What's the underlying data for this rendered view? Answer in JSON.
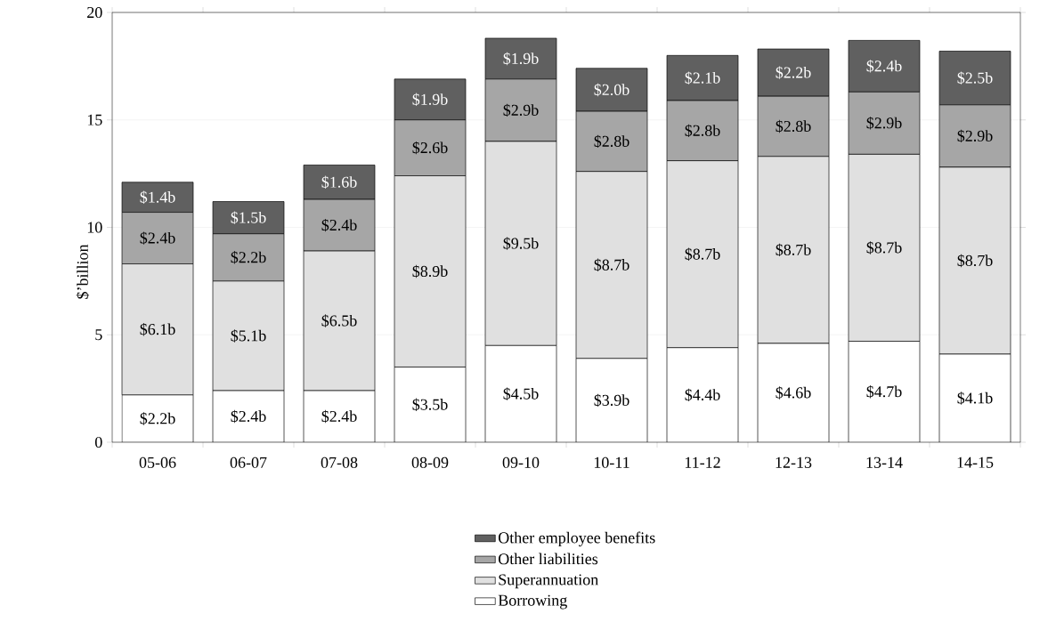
{
  "chart_data": {
    "type": "bar",
    "stacked": true,
    "ylabel": "$’billion",
    "categories": [
      "05-06",
      "06-07",
      "07-08",
      "08-09",
      "09-10",
      "10-11",
      "11-12",
      "12-13",
      "13-14",
      "14-15"
    ],
    "ylim": [
      0,
      20
    ],
    "yticks": [
      0,
      5,
      10,
      15,
      20
    ],
    "grid": "y",
    "legend": "bottom",
    "data_labels": true,
    "series": [
      {
        "name": "Borrowing",
        "color": "#ffffff",
        "values": [
          2.2,
          2.4,
          2.4,
          3.5,
          4.5,
          3.9,
          4.4,
          4.6,
          4.7,
          4.1
        ],
        "value_labels": [
          "$2.2b",
          "$2.4b",
          "$2.4b",
          "$3.5b",
          "$4.5b",
          "$3.9b",
          "$4.4b",
          "$4.6b",
          "$4.7b",
          "$4.1b"
        ]
      },
      {
        "name": "Superannuation",
        "color": "#e0e0e0",
        "values": [
          6.1,
          5.1,
          6.5,
          8.9,
          9.5,
          8.7,
          8.7,
          8.7,
          8.7,
          8.7
        ],
        "value_labels": [
          "$6.1b",
          "$5.1b",
          "$6.5b",
          "$8.9b",
          "$9.5b",
          "$8.7b",
          "$8.7b",
          "$8.7b",
          "$8.7b",
          "$8.7b"
        ]
      },
      {
        "name": "Other liabilities",
        "color": "#a6a6a6",
        "values": [
          2.4,
          2.2,
          2.4,
          2.6,
          2.9,
          2.8,
          2.8,
          2.8,
          2.9,
          2.9
        ],
        "value_labels": [
          "$2.4b",
          "$2.2b",
          "$2.4b",
          "$2.6b",
          "$2.9b",
          "$2.8b",
          "$2.8b",
          "$2.8b",
          "$2.9b",
          "$2.9b"
        ]
      },
      {
        "name": "Other employee benefits",
        "color": "#606060",
        "values": [
          1.4,
          1.5,
          1.6,
          1.9,
          1.9,
          2.0,
          2.1,
          2.2,
          2.4,
          2.5
        ],
        "value_labels": [
          "$1.4b",
          "$1.5b",
          "$1.6b",
          "$1.9b",
          "$1.9b",
          "$2.0b",
          "$2.1b",
          "$2.2b",
          "$2.4b",
          "$2.5b"
        ]
      }
    ]
  }
}
